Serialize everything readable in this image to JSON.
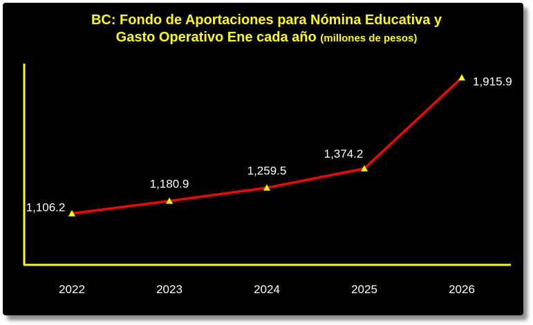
{
  "chart_data": {
    "type": "line",
    "title_line1": "BC: Fondo de Aportaciones para Nómina Educativa y",
    "title_line2": "Gasto Operativo Ene cada año",
    "title_units": "(millones de pesos)",
    "xlabel": "",
    "ylabel": "",
    "categories": [
      "2022",
      "2023",
      "2024",
      "2025",
      "2026"
    ],
    "values": [
      1106.2,
      1180.9,
      1259.5,
      1374.2,
      1915.9
    ],
    "value_labels": [
      "1,106.2",
      "1,180.9",
      "1,259.5",
      "1,374.2",
      "1,915.9"
    ],
    "ylim": [
      800,
      2000
    ],
    "grid": false,
    "legend": "none",
    "colors": {
      "background": "#000000",
      "title": "#ffff00",
      "axis": "#ffff00",
      "line": "#ff0000",
      "marker": "#ffff00",
      "text": "#ffffff"
    }
  }
}
